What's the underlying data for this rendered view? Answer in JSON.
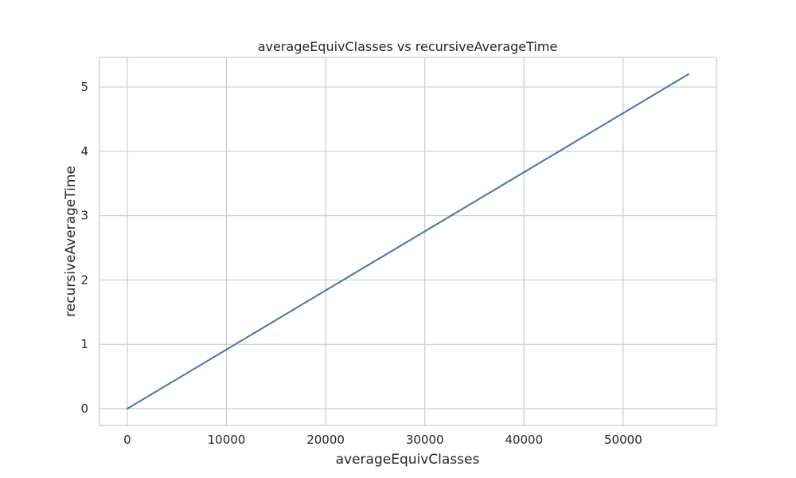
{
  "chart_data": {
    "type": "line",
    "title": "averageEquivClasses vs recursiveAverageTime",
    "xlabel": "averageEquivClasses",
    "ylabel": "recursiveAverageTime",
    "xlim": [
      -2800,
      59400
    ],
    "ylim": [
      -0.26,
      5.46
    ],
    "xticks": [
      0,
      10000,
      20000,
      30000,
      40000,
      50000
    ],
    "xtick_labels": [
      "0",
      "10000",
      "20000",
      "30000",
      "40000",
      "50000"
    ],
    "yticks": [
      0,
      1,
      2,
      3,
      4,
      5
    ],
    "ytick_labels": [
      "0",
      "1",
      "2",
      "3",
      "4",
      "5"
    ],
    "grid": true,
    "series": [
      {
        "color": "#4c72b0",
        "x": [
          0,
          56600
        ],
        "y": [
          0,
          5.2
        ]
      }
    ],
    "colors": {
      "grid": "#cccccc",
      "frame": "#cccccc",
      "text": "#262626"
    }
  }
}
